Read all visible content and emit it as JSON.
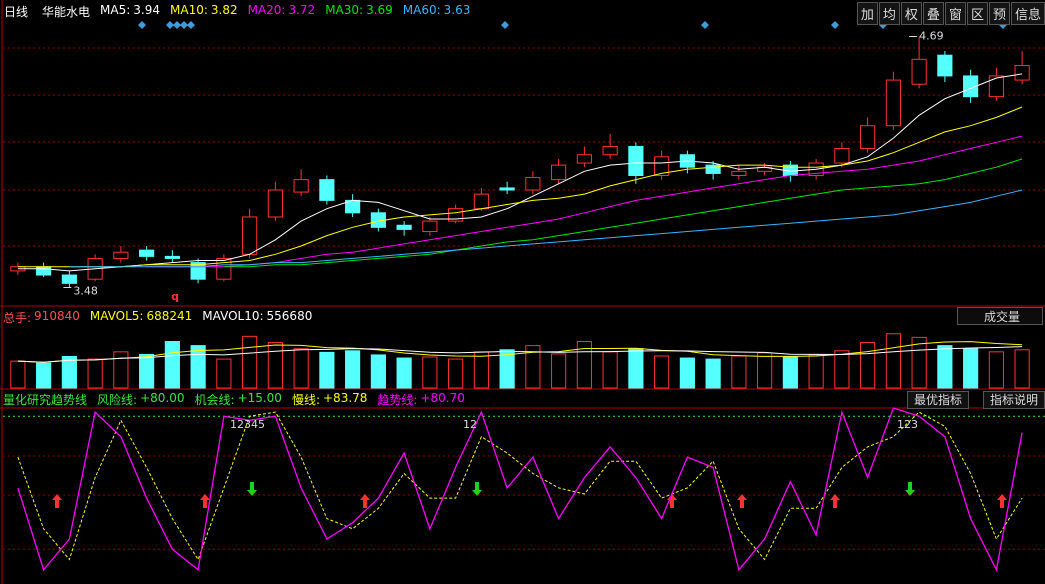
{
  "toolbar": [
    "加",
    "均",
    "权",
    "叠",
    "窗",
    "区",
    "预",
    "信息"
  ],
  "buttons": [
    "最优指标",
    "指标说明"
  ],
  "chart_data": [
    {
      "type": "candlestick",
      "period": "日线",
      "stock": "华能水电",
      "ylim": [
        3.41,
        4.76
      ],
      "up_color": "#ff3232",
      "down_color": "#54ffff",
      "open": [
        3.56,
        3.58,
        3.54,
        3.52,
        3.62,
        3.66,
        3.63,
        3.6,
        3.52,
        3.64,
        3.82,
        3.94,
        4.0,
        3.9,
        3.84,
        3.78,
        3.75,
        3.8,
        3.86,
        3.96,
        3.95,
        4.0,
        4.08,
        4.12,
        4.16,
        4.02,
        4.12,
        4.07,
        4.02,
        4.04,
        4.07,
        4.02,
        4.08,
        4.15,
        4.26,
        4.46,
        4.6,
        4.5,
        4.4,
        4.48
      ],
      "high": [
        3.6,
        3.6,
        3.56,
        3.64,
        3.68,
        3.68,
        3.66,
        3.62,
        3.64,
        3.86,
        3.99,
        4.05,
        4.02,
        3.93,
        3.86,
        3.8,
        3.82,
        3.88,
        3.96,
        3.99,
        4.04,
        4.1,
        4.16,
        4.22,
        4.18,
        4.14,
        4.14,
        4.09,
        4.07,
        4.08,
        4.09,
        4.1,
        4.18,
        4.3,
        4.52,
        4.69,
        4.62,
        4.53,
        4.54,
        4.62
      ],
      "low": [
        3.54,
        3.53,
        3.48,
        3.51,
        3.6,
        3.61,
        3.6,
        3.5,
        3.51,
        3.62,
        3.8,
        3.92,
        3.88,
        3.82,
        3.75,
        3.73,
        3.73,
        3.79,
        3.85,
        3.93,
        3.93,
        3.98,
        4.06,
        4.1,
        3.98,
        4.0,
        4.03,
        4.0,
        4.0,
        4.02,
        3.99,
        4.0,
        4.06,
        4.13,
        4.24,
        4.44,
        4.47,
        4.37,
        4.38,
        4.46
      ],
      "close": [
        3.58,
        3.54,
        3.5,
        3.62,
        3.65,
        3.63,
        3.62,
        3.52,
        3.62,
        3.82,
        3.95,
        4.0,
        3.9,
        3.84,
        3.77,
        3.76,
        3.8,
        3.86,
        3.93,
        3.95,
        4.01,
        4.07,
        4.12,
        4.16,
        4.02,
        4.11,
        4.06,
        4.03,
        4.04,
        4.06,
        4.02,
        4.08,
        4.15,
        4.26,
        4.48,
        4.58,
        4.5,
        4.4,
        4.5,
        4.55
      ],
      "series": [
        {
          "name": "MA5:",
          "current": 3.94,
          "color": "#ffffff",
          "values": [
            3.57,
            3.57,
            3.56,
            3.57,
            3.58,
            3.59,
            3.6,
            3.61,
            3.61,
            3.64,
            3.71,
            3.8,
            3.86,
            3.9,
            3.89,
            3.85,
            3.81,
            3.81,
            3.82,
            3.86,
            3.92,
            3.98,
            4.04,
            4.07,
            4.08,
            4.08,
            4.09,
            4.08,
            4.05,
            4.06,
            4.04,
            4.05,
            4.07,
            4.11,
            4.2,
            4.31,
            4.39,
            4.44,
            4.49,
            4.51
          ]
        },
        {
          "name": "MA10:",
          "current": 3.82,
          "color": "#ffff00",
          "values": [
            3.58,
            3.58,
            3.58,
            3.58,
            3.58,
            3.59,
            3.59,
            3.59,
            3.6,
            3.61,
            3.64,
            3.68,
            3.73,
            3.77,
            3.8,
            3.82,
            3.83,
            3.84,
            3.86,
            3.88,
            3.9,
            3.91,
            3.93,
            3.97,
            4.0,
            4.03,
            4.05,
            4.06,
            4.07,
            4.07,
            4.06,
            4.06,
            4.07,
            4.09,
            4.13,
            4.18,
            4.23,
            4.26,
            4.3,
            4.35
          ]
        },
        {
          "name": "MA20:",
          "current": 3.72,
          "color": "#ff00ff",
          "values": [
            null,
            null,
            null,
            null,
            null,
            3.58,
            3.58,
            3.58,
            3.58,
            3.59,
            3.6,
            3.62,
            3.64,
            3.65,
            3.67,
            3.69,
            3.71,
            3.73,
            3.75,
            3.77,
            3.79,
            3.81,
            3.84,
            3.87,
            3.9,
            3.92,
            3.94,
            3.96,
            3.98,
            4.0,
            4.02,
            4.03,
            4.04,
            4.05,
            4.07,
            4.09,
            4.12,
            4.15,
            4.18,
            4.21
          ]
        },
        {
          "name": "MA30:",
          "current": 3.69,
          "color": "#00e600",
          "values": [
            null,
            null,
            null,
            null,
            null,
            null,
            null,
            null,
            3.58,
            3.58,
            3.59,
            3.59,
            3.6,
            3.61,
            3.62,
            3.63,
            3.64,
            3.66,
            3.68,
            3.7,
            3.71,
            3.73,
            3.75,
            3.77,
            3.79,
            3.81,
            3.83,
            3.85,
            3.87,
            3.89,
            3.91,
            3.93,
            3.95,
            3.96,
            3.97,
            3.98,
            4.0,
            4.03,
            4.06,
            4.1
          ]
        },
        {
          "name": "MA60:",
          "current": 3.63,
          "color": "#3cb4ff",
          "values": [
            null,
            null,
            3.58,
            3.58,
            3.58,
            3.58,
            3.58,
            3.58,
            3.59,
            3.59,
            3.6,
            3.6,
            3.61,
            3.62,
            3.63,
            3.64,
            3.65,
            3.66,
            3.67,
            3.68,
            3.69,
            3.7,
            3.71,
            3.72,
            3.73,
            3.74,
            3.75,
            3.76,
            3.77,
            3.78,
            3.79,
            3.8,
            3.81,
            3.82,
            3.83,
            3.85,
            3.87,
            3.89,
            3.92,
            3.95
          ]
        }
      ],
      "annotations": [
        "q"
      ]
    },
    {
      "type": "bar",
      "title": "成交量",
      "ylim": [
        0,
        1200000
      ],
      "current_name": "总手:",
      "current": 910840,
      "current_color": "#ff5050",
      "values": [
        520000,
        480000,
        610000,
        560000,
        700000,
        650000,
        900000,
        820000,
        560000,
        1000000,
        880000,
        760000,
        690000,
        720000,
        640000,
        580000,
        600000,
        560000,
        700000,
        740000,
        820000,
        660000,
        900000,
        700000,
        760000,
        620000,
        580000,
        560000,
        620000,
        680000,
        600000,
        640000,
        720000,
        880000,
        1050000,
        980000,
        820000,
        760000,
        700000,
        740000
      ],
      "series": [
        {
          "name": "MAVOL5:",
          "current": 688241,
          "color": "#ffff00",
          "values": [
            520000,
            500000,
            537000,
            543000,
            574000,
            604000,
            684000,
            726000,
            738000,
            786000,
            832000,
            824000,
            782000,
            772000,
            738000,
            678000,
            638000,
            620000,
            616000,
            644000,
            692000,
            704000,
            764000,
            764000,
            768000,
            728000,
            712000,
            644000,
            628000,
            612000,
            612000,
            620000,
            652000,
            704000,
            778000,
            854000,
            890000,
            898000,
            862000,
            836000
          ]
        },
        {
          "name": "MAVOL10:",
          "current": 556680,
          "color": "#ffffff",
          "values": [
            520000,
            500000,
            537000,
            543000,
            574000,
            587000,
            627000,
            650000,
            640000,
            676000,
            712000,
            740000,
            747000,
            763000,
            755000,
            723000,
            693000,
            680000,
            694000,
            706000,
            700000,
            690000,
            701000,
            704000,
            716000,
            720000,
            718000,
            704000,
            696000,
            690000,
            652000,
            650000,
            648000,
            666000,
            700000,
            733000,
            757000,
            775000,
            783000,
            802000
          ]
        }
      ]
    },
    {
      "type": "oscillator",
      "title": "量化研究趋势线",
      "ylim": [
        0,
        84
      ],
      "levels": [
        {
          "name": "风险线:",
          "value": {
            "value": 80,
            "label": "+80.00"
          },
          "color": "#3ce63c"
        },
        {
          "name": "机会线:",
          "value": {
            "value": 15,
            "label": "+15.00"
          },
          "color": "#3ce63c"
        }
      ],
      "series": [
        {
          "name": "慢线:",
          "current": {
            "value": 83.78,
            "label": "+83.78"
          },
          "color": "#ffff00",
          "values": [
            60,
            25,
            10,
            50,
            78,
            55,
            30,
            10,
            45,
            80,
            82,
            60,
            30,
            25,
            35,
            52,
            40,
            40,
            70,
            62,
            52,
            45,
            42,
            58,
            58,
            40,
            45,
            58,
            25,
            10,
            35,
            35,
            55,
            65,
            70,
            82,
            75,
            52,
            20,
            40
          ]
        },
        {
          "name": "趋势线:",
          "current": {
            "value": 80.7,
            "label": "+80.70"
          },
          "color": "#ff00ff",
          "values": [
            45,
            5,
            20,
            82,
            70,
            40,
            15,
            5,
            80,
            78,
            80,
            45,
            20,
            28,
            40,
            62,
            25,
            55,
            82,
            45,
            60,
            30,
            50,
            65,
            50,
            30,
            60,
            55,
            5,
            20,
            48,
            22,
            82,
            50,
            84,
            80,
            70,
            30,
            5,
            72
          ]
        }
      ],
      "annotations": [
        "12345",
        "12",
        "123"
      ]
    }
  ]
}
